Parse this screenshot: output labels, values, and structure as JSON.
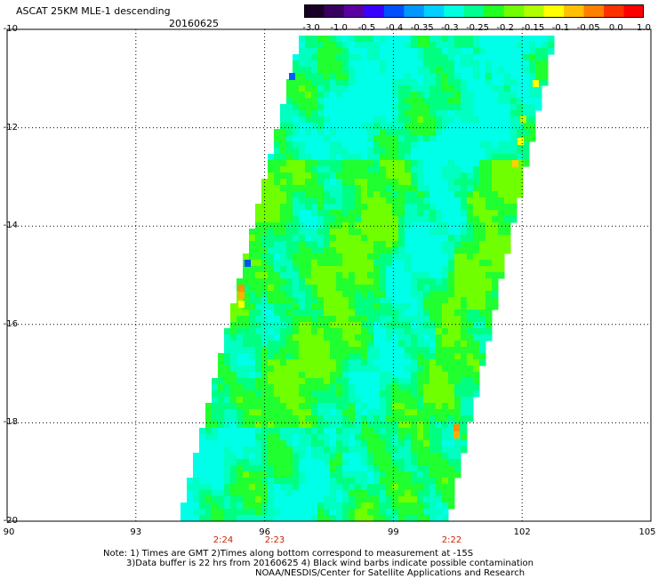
{
  "title": "ASCAT 25KM MLE-1 descending",
  "date": "20160625",
  "colorbar": {
    "labels": [
      "-3.0",
      "-1.0",
      "-0.5",
      "-0.4",
      "-0.35",
      "-0.3",
      "-0.25",
      "-0.2",
      "-0.15",
      "-0.1",
      "-0.05",
      "0.0",
      "1.0"
    ],
    "colors": [
      "#1a0026",
      "#3a0060",
      "#5a00a0",
      "#3a00ff",
      "#0050ff",
      "#0098ff",
      "#00d0ff",
      "#00ffe0",
      "#00ff90",
      "#20ff20",
      "#70ff00",
      "#b0ff00",
      "#ffff00",
      "#ffc000",
      "#ff8000",
      "#ff3000",
      "#ff0000"
    ]
  },
  "map": {
    "lat_labels": [
      "-10",
      "-12",
      "-14",
      "-16",
      "-18",
      "-20"
    ],
    "lon_labels": [
      "90",
      "93",
      "96",
      "99",
      "102",
      "105"
    ],
    "pass_times": [
      "2:24",
      "2:23",
      "2:22"
    ]
  },
  "notes": {
    "line1": "Note: 1) Times are GMT 2)Times along bottom correspond to measurement at -15S",
    "line2": "3)Data buffer is 22 hrs from 20160625 4) Black wind barbs indicate possible contamination",
    "line3": "NOAA/NESDIS/Center for Satellite Applications and Research"
  }
}
